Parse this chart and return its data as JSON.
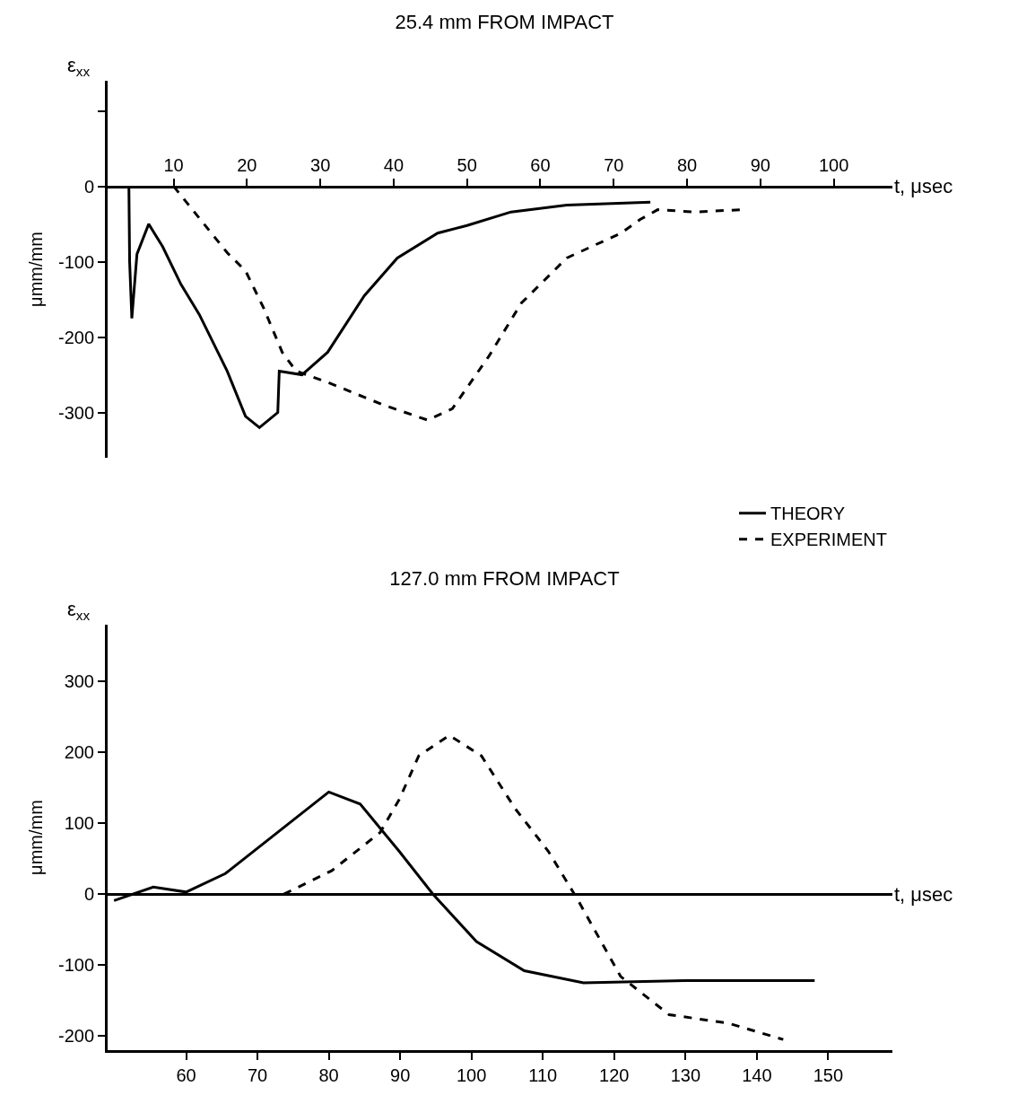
{
  "chart_data": [
    {
      "type": "line",
      "title": "25.4 mm FROM IMPACT",
      "xlabel": "t, μsec",
      "ylabel": "μmm/mm",
      "annotations": [
        "ε$_{xx}$"
      ],
      "xlim": [
        1,
        108
      ],
      "xticks": [
        10,
        20,
        30,
        40,
        50,
        60,
        70,
        80,
        90,
        100
      ],
      "ylim": [
        -360,
        140
      ],
      "yticks": [
        {
          "value": 100,
          "label": null
        },
        0,
        -100,
        -200,
        -300
      ],
      "legend": false,
      "series": [
        {
          "color": "#000000",
          "line_style": "solid",
          "x": [
            3.9,
            4,
            4.3,
            5,
            6.6,
            8.5,
            11,
            13.5,
            17.3,
            19.8,
            21.7,
            24.2,
            24.4,
            27.5,
            31,
            36,
            40.5,
            46,
            50,
            56,
            63.6,
            75
          ],
          "values": [
            0,
            -100,
            -175,
            -90,
            -50,
            -80,
            -130,
            -170,
            -245,
            -305,
            -320,
            -300,
            -245,
            -250,
            -220,
            -145,
            -95,
            -62,
            -52,
            -34,
            -25,
            -21
          ]
        },
        {
          "color": "#000000",
          "line_style": "dashed",
          "x": [
            10,
            17.3,
            19.8,
            22.3,
            24.8,
            26.7,
            31,
            38.6,
            44.6,
            48,
            53,
            57.4,
            63.6,
            71,
            73.6,
            76,
            81,
            87.4
          ],
          "values": [
            0,
            -88,
            -112,
            -162,
            -220,
            -245,
            -260,
            -290,
            -310,
            -295,
            -225,
            -155,
            -95,
            -62,
            -44,
            -31,
            -34,
            -31
          ]
        }
      ]
    },
    {
      "type": "line",
      "title": "127.0 mm FROM IMPACT",
      "xlabel": "t, μsec",
      "ylabel": "μmm/mm",
      "annotations": [
        "ε$_{xx}$"
      ],
      "xlim": [
        49,
        159
      ],
      "xticks": [
        60,
        70,
        80,
        90,
        100,
        110,
        120,
        130,
        140,
        150
      ],
      "ylim": [
        -220,
        380
      ],
      "yticks": [
        300,
        200,
        100,
        0,
        -100,
        -200
      ],
      "legend": "top right",
      "series": [
        {
          "name": "THEORY",
          "color": "#000000",
          "line_style": "solid",
          "x": [
            49.9,
            55.4,
            60,
            65.5,
            73.7,
            80,
            84.4,
            89.9,
            94.6,
            100.7,
            107.4,
            115.7,
            130,
            148.1
          ],
          "values": [
            -9,
            10,
            3,
            29,
            94,
            144,
            127,
            60,
            0,
            -67,
            -108,
            -125,
            -122,
            -122
          ]
        },
        {
          "name": "EXPERIMENT",
          "color": "#000000",
          "line_style": "dashed",
          "x": [
            73.7,
            80.4,
            87.2,
            89.9,
            92.6,
            96.9,
            101.4,
            106.1,
            110.8,
            114.9,
            120.9,
            127.7,
            136,
            143.7
          ],
          "values": [
            0,
            33,
            87,
            134,
            195,
            224,
            195,
            121,
            60,
            -8,
            -116,
            -170,
            -182,
            -205
          ]
        }
      ]
    }
  ]
}
